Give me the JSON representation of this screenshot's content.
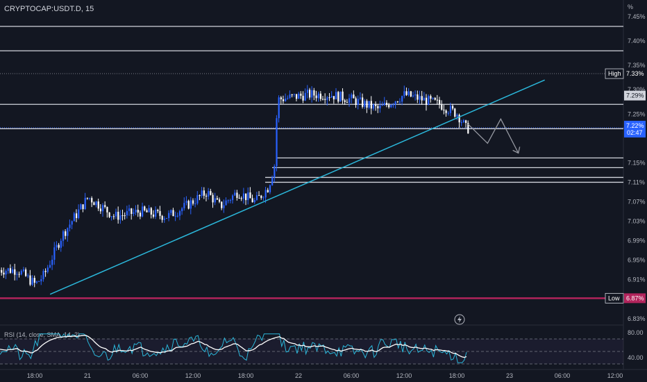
{
  "chart_data": {
    "type": "candlestick",
    "title": "CRYPTOCAP:USDT.D, 15",
    "unit_label": "%",
    "price_ticks": [
      "7.45%",
      "7.40%",
      "7.35%",
      "7.30%",
      "7.25%",
      "7.15%",
      "7.11%",
      "7.07%",
      "7.03%",
      "6.99%",
      "6.95%",
      "6.91%",
      "6.83%"
    ],
    "time_ticks": [
      "18:00",
      "21",
      "06:00",
      "12:00",
      "18:00",
      "22",
      "06:00",
      "12:00",
      "18:00",
      "23",
      "06:00",
      "12:00"
    ],
    "high_marker": {
      "label": "High",
      "value": "7.33%"
    },
    "low_marker": {
      "label": "Low",
      "value": "6.87%"
    },
    "last_marker": {
      "value": "7.29%"
    },
    "current_marker": {
      "value": "7.22%",
      "countdown": "02:47"
    },
    "horizontal_levels": [
      7.43,
      7.38,
      7.27,
      7.22,
      7.16,
      7.14,
      7.12,
      7.11
    ],
    "trendline": {
      "from": {
        "x": "20 19:45",
        "y": 6.88
      },
      "to": {
        "x": "23 04:00",
        "y": 7.32
      }
    },
    "projection": [
      {
        "x": "22 19:15",
        "y": 7.23
      },
      {
        "x": "22 21:30",
        "y": 7.19
      },
      {
        "x": "22 23:00",
        "y": 7.24
      },
      {
        "x": "23 01:00",
        "y": 7.17
      }
    ],
    "price_path": [
      {
        "t": "20 16:00",
        "v": 6.93
      },
      {
        "t": "20 18:00",
        "v": 6.9
      },
      {
        "t": "20 19:00",
        "v": 6.92
      },
      {
        "t": "20 21:00",
        "v": 7.0
      },
      {
        "t": "21 00:00",
        "v": 7.08
      },
      {
        "t": "21 03:00",
        "v": 7.04
      },
      {
        "t": "21 06:00",
        "v": 7.05
      },
      {
        "t": "21 09:00",
        "v": 7.04
      },
      {
        "t": "21 11:00",
        "v": 7.06
      },
      {
        "t": "21 13:30",
        "v": 7.09
      },
      {
        "t": "21 15:00",
        "v": 7.06
      },
      {
        "t": "21 17:00",
        "v": 7.09
      },
      {
        "t": "21 19:00",
        "v": 7.07
      },
      {
        "t": "21 20:30",
        "v": 7.1
      },
      {
        "t": "21 21:15",
        "v": 7.15
      },
      {
        "t": "21 21:30",
        "v": 7.28
      },
      {
        "t": "22 01:00",
        "v": 7.29
      },
      {
        "t": "22 03:30",
        "v": 7.29
      },
      {
        "t": "22 06:00",
        "v": 7.28
      },
      {
        "t": "22 09:00",
        "v": 7.26
      },
      {
        "t": "22 12:00",
        "v": 7.29
      },
      {
        "t": "22 16:00",
        "v": 7.27
      },
      {
        "t": "22 18:00",
        "v": 7.25
      },
      {
        "t": "22 19:00",
        "v": 7.22
      }
    ],
    "indicator": {
      "name": "RSI (14, close, SMA, 14, 2)",
      "ticks": [
        "80.00",
        "40.00"
      ],
      "levels": [
        70,
        50,
        30
      ]
    },
    "colors": {
      "up": "#26a69a",
      "down": "#ef5350",
      "candle_up": "#2962ff",
      "candle_down": "#ffffff",
      "trendline": "#2bb7da",
      "low_line": "#b2245c",
      "level_lines": "#d1d4dc",
      "rsi_line": "#2bb7da",
      "rsi_ma": "#ffffff"
    }
  }
}
